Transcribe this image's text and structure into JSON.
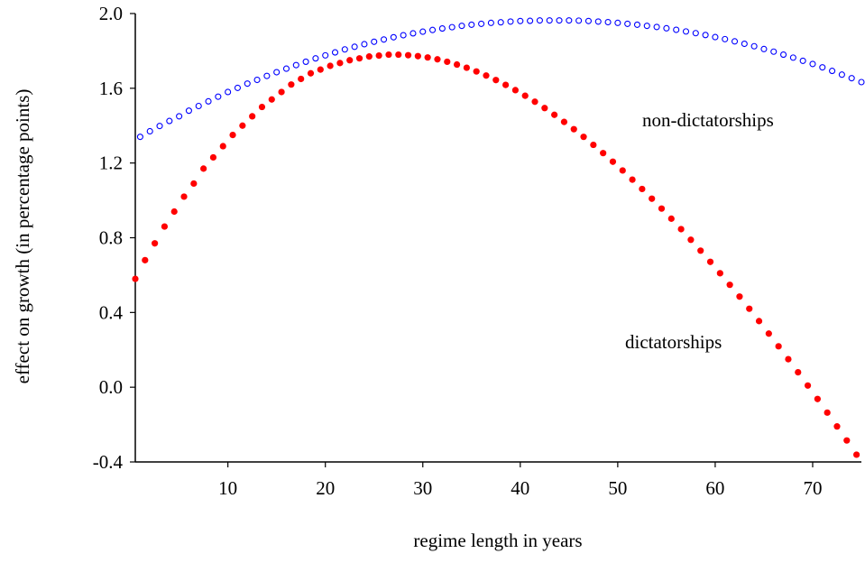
{
  "chart_data": {
    "type": "scatter",
    "title": "",
    "xlabel": "regime length in years",
    "ylabel": "effect on growth (in percentage points)",
    "xlim": [
      0.5,
      75
    ],
    "ylim": [
      -0.4,
      2.0
    ],
    "xticks": [
      10,
      20,
      30,
      40,
      50,
      60,
      70
    ],
    "yticks": [
      -0.4,
      0.0,
      0.4,
      0.8,
      1.2,
      1.6,
      2.0
    ],
    "ytick_labels": [
      "-0.4",
      "0.0",
      "0.4",
      "0.8",
      "1.2",
      "1.6",
      "2.0"
    ],
    "grid": false,
    "legend": "none",
    "series": [
      {
        "label": "non-dictatorships",
        "color": "#0000ff",
        "marker": "hollow-circle",
        "points": [
          [
            1,
            1.34
          ],
          [
            2,
            1.37
          ],
          [
            3,
            1.398
          ],
          [
            4,
            1.425
          ],
          [
            5,
            1.45
          ],
          [
            6,
            1.48
          ],
          [
            7,
            1.505
          ],
          [
            8,
            1.53
          ],
          [
            9,
            1.555
          ],
          [
            10,
            1.58
          ],
          [
            11,
            1.602
          ],
          [
            12,
            1.625
          ],
          [
            13,
            1.645
          ],
          [
            14,
            1.666
          ],
          [
            15,
            1.686
          ],
          [
            16,
            1.705
          ],
          [
            17,
            1.724
          ],
          [
            18,
            1.742
          ],
          [
            19,
            1.76
          ],
          [
            20,
            1.776
          ],
          [
            21,
            1.792
          ],
          [
            22,
            1.808
          ],
          [
            23,
            1.822
          ],
          [
            24,
            1.836
          ],
          [
            25,
            1.849
          ],
          [
            26,
            1.861
          ],
          [
            27,
            1.873
          ],
          [
            28,
            1.884
          ],
          [
            29,
            1.894
          ],
          [
            30,
            1.903
          ],
          [
            31,
            1.912
          ],
          [
            32,
            1.92
          ],
          [
            33,
            1.927
          ],
          [
            34,
            1.934
          ],
          [
            35,
            1.94
          ],
          [
            36,
            1.945
          ],
          [
            37,
            1.95
          ],
          [
            38,
            1.953
          ],
          [
            39,
            1.957
          ],
          [
            40,
            1.96
          ],
          [
            41,
            1.961
          ],
          [
            42,
            1.963
          ],
          [
            43,
            1.963
          ],
          [
            44,
            1.963
          ],
          [
            45,
            1.963
          ],
          [
            46,
            1.962
          ],
          [
            47,
            1.96
          ],
          [
            48,
            1.957
          ],
          [
            49,
            1.954
          ],
          [
            50,
            1.95
          ],
          [
            51,
            1.945
          ],
          [
            52,
            1.94
          ],
          [
            53,
            1.934
          ],
          [
            54,
            1.928
          ],
          [
            55,
            1.921
          ],
          [
            56,
            1.913
          ],
          [
            57,
            1.904
          ],
          [
            58,
            1.895
          ],
          [
            59,
            1.885
          ],
          [
            60,
            1.874
          ],
          [
            61,
            1.863
          ],
          [
            62,
            1.851
          ],
          [
            63,
            1.838
          ],
          [
            64,
            1.825
          ],
          [
            65,
            1.81
          ],
          [
            66,
            1.796
          ],
          [
            67,
            1.78
          ],
          [
            68,
            1.764
          ],
          [
            69,
            1.747
          ],
          [
            70,
            1.73
          ],
          [
            71,
            1.712
          ],
          [
            72,
            1.693
          ],
          [
            73,
            1.673
          ],
          [
            74,
            1.654
          ],
          [
            75,
            1.633
          ]
        ]
      },
      {
        "label": "dictatorships",
        "color": "#ff0000",
        "marker": "filled-circle",
        "points": [
          [
            0.5,
            0.58
          ],
          [
            1.5,
            0.68
          ],
          [
            2.5,
            0.77
          ],
          [
            3.5,
            0.86
          ],
          [
            4.5,
            0.94
          ],
          [
            5.5,
            1.02
          ],
          [
            6.5,
            1.09
          ],
          [
            7.5,
            1.17
          ],
          [
            8.5,
            1.23
          ],
          [
            9.5,
            1.29
          ],
          [
            10.5,
            1.35
          ],
          [
            11.5,
            1.4
          ],
          [
            12.5,
            1.45
          ],
          [
            13.5,
            1.5
          ],
          [
            14.5,
            1.54
          ],
          [
            15.5,
            1.58
          ],
          [
            16.5,
            1.62
          ],
          [
            17.5,
            1.65
          ],
          [
            18.5,
            1.68
          ],
          [
            19.5,
            1.7
          ],
          [
            20.5,
            1.72
          ],
          [
            21.5,
            1.735
          ],
          [
            22.5,
            1.75
          ],
          [
            23.5,
            1.76
          ],
          [
            24.5,
            1.77
          ],
          [
            25.5,
            1.775
          ],
          [
            26.5,
            1.78
          ],
          [
            27.5,
            1.78
          ],
          [
            28.5,
            1.777
          ],
          [
            29.5,
            1.772
          ],
          [
            30.5,
            1.765
          ],
          [
            31.5,
            1.755
          ],
          [
            32.5,
            1.742
          ],
          [
            33.5,
            1.727
          ],
          [
            34.5,
            1.71
          ],
          [
            35.5,
            1.69
          ],
          [
            36.5,
            1.668
          ],
          [
            37.5,
            1.644
          ],
          [
            38.5,
            1.618
          ],
          [
            39.5,
            1.59
          ],
          [
            40.5,
            1.56
          ],
          [
            41.5,
            1.528
          ],
          [
            42.5,
            1.494
          ],
          [
            43.5,
            1.458
          ],
          [
            44.5,
            1.42
          ],
          [
            45.5,
            1.381
          ],
          [
            46.5,
            1.34
          ],
          [
            47.5,
            1.297
          ],
          [
            48.5,
            1.253
          ],
          [
            49.5,
            1.207
          ],
          [
            50.5,
            1.16
          ],
          [
            51.5,
            1.111
          ],
          [
            52.5,
            1.061
          ],
          [
            53.5,
            1.009
          ],
          [
            54.5,
            0.956
          ],
          [
            55.5,
            0.902
          ],
          [
            56.5,
            0.846
          ],
          [
            57.5,
            0.789
          ],
          [
            58.5,
            0.731
          ],
          [
            59.5,
            0.671
          ],
          [
            60.5,
            0.61
          ],
          [
            61.5,
            0.548
          ],
          [
            62.5,
            0.485
          ],
          [
            63.5,
            0.42
          ],
          [
            64.5,
            0.354
          ],
          [
            65.5,
            0.287
          ],
          [
            66.5,
            0.219
          ],
          [
            67.5,
            0.15
          ],
          [
            68.5,
            0.08
          ],
          [
            69.5,
            0.009
          ],
          [
            70.5,
            -0.063
          ],
          [
            71.5,
            -0.136
          ],
          [
            72.5,
            -0.21
          ],
          [
            73.5,
            -0.285
          ],
          [
            74.5,
            -0.361
          ]
        ]
      }
    ]
  }
}
